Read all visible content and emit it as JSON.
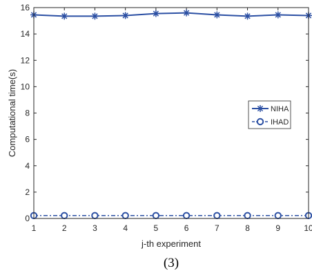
{
  "chart_data": {
    "type": "line",
    "xlabel": "j-th experiment",
    "ylabel": "Computational time(s)",
    "caption": "(3)",
    "x": [
      1,
      2,
      3,
      4,
      5,
      6,
      7,
      8,
      9,
      10
    ],
    "xlim": [
      1,
      10
    ],
    "ylim": [
      0,
      16
    ],
    "xticks": [
      1,
      2,
      3,
      4,
      5,
      6,
      7,
      8,
      9,
      10
    ],
    "yticks": [
      0,
      2,
      4,
      6,
      8,
      10,
      12,
      14,
      16
    ],
    "grid": false,
    "legend_position": "right",
    "series": [
      {
        "name": "NIHA",
        "marker": "asterisk",
        "line_style": "solid",
        "color": "#2b4fa3",
        "values": [
          15.45,
          15.35,
          15.35,
          15.4,
          15.55,
          15.6,
          15.45,
          15.35,
          15.45,
          15.4
        ]
      },
      {
        "name": "IHAD",
        "marker": "circle",
        "line_style": "dash-dot",
        "color": "#2b4fa3",
        "values": [
          0.22,
          0.22,
          0.22,
          0.22,
          0.22,
          0.22,
          0.22,
          0.22,
          0.22,
          0.22
        ]
      }
    ]
  }
}
